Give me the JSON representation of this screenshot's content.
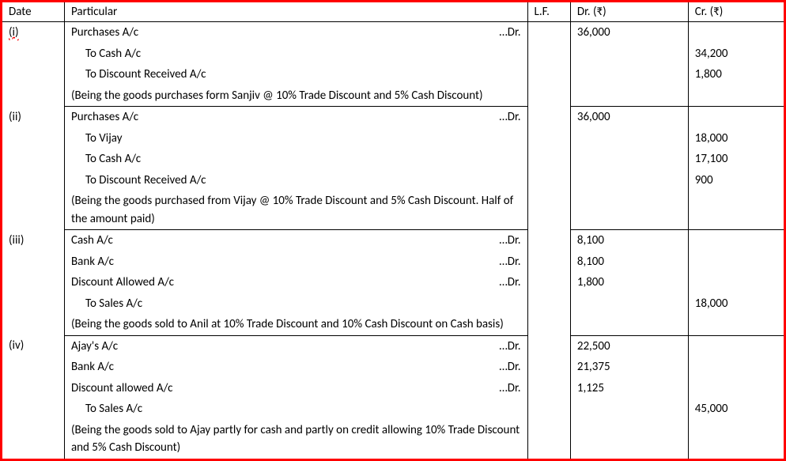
{
  "headers": {
    "date": "Date",
    "particular": "Particular",
    "lf": "L.F.",
    "dr": "Dr. (₹)",
    "cr": "Cr. (₹)"
  },
  "entries": [
    {
      "date": "(i)",
      "date_underlined": true,
      "lines": [
        {
          "text": "Purchases A/c",
          "suffix": "…Dr.",
          "dr": "36,000",
          "cr": ""
        },
        {
          "text": "To Cash A/c",
          "indent": 1,
          "dr": "",
          "cr": "34,200"
        },
        {
          "text": "To Discount Received A/c",
          "indent": 1,
          "dr": "",
          "cr": "1,800"
        },
        {
          "text": "(Being the goods purchases form Sanjiv @ 10% Trade Discount and 5% Cash Discount)",
          "narration": true
        }
      ]
    },
    {
      "date": "(ii)",
      "lines": [
        {
          "text": "Purchases A/c",
          "suffix": "…Dr.",
          "dr": "36,000",
          "cr": ""
        },
        {
          "text": "To Vijay",
          "indent": 1,
          "dr": "",
          "cr": "18,000"
        },
        {
          "text": "To Cash A/c",
          "indent": 1,
          "dr": "",
          "cr": "17,100"
        },
        {
          "text": "To Discount Received A/c",
          "indent": 1,
          "dr": "",
          "cr": "900"
        },
        {
          "text": "(Being the goods purchased from Vijay @ 10% Trade Discount and 5% Cash Discount. Half of the amount paid)",
          "narration": true
        }
      ]
    },
    {
      "date": "(iii)",
      "lines": [
        {
          "text": "Cash A/c",
          "suffix": "…Dr.",
          "dr": "8,100",
          "cr": ""
        },
        {
          "text": "Bank A/c",
          "suffix": "…Dr.",
          "dr": "8,100",
          "cr": ""
        },
        {
          "text": "Discount Allowed A/c",
          "suffix": "…Dr.",
          "dr": "1,800",
          "cr": ""
        },
        {
          "text": "To Sales A/c",
          "indent": 1,
          "dr": "",
          "cr": "18,000"
        },
        {
          "text": "(Being the goods sold to Anil at 10% Trade Discount and 10% Cash Discount on Cash basis)",
          "narration": true
        }
      ]
    },
    {
      "date": "(iv)",
      "lines": [
        {
          "text": "Ajay's A/c",
          "suffix": "…Dr.",
          "dr": "22,500",
          "cr": ""
        },
        {
          "text": "Bank A/c",
          "suffix": "…Dr.",
          "dr": "21,375",
          "cr": ""
        },
        {
          "text": "Discount allowed A/c",
          "suffix": "…Dr.",
          "dr": "1,125",
          "cr": ""
        },
        {
          "text": "To Sales A/c",
          "indent": 1,
          "dr": "",
          "cr": "45,000"
        },
        {
          "text": "(Being the goods sold to Ajay partly for cash and partly on credit allowing 10% Trade Discount and 5% Cash Discount)",
          "narration": true
        }
      ]
    }
  ]
}
